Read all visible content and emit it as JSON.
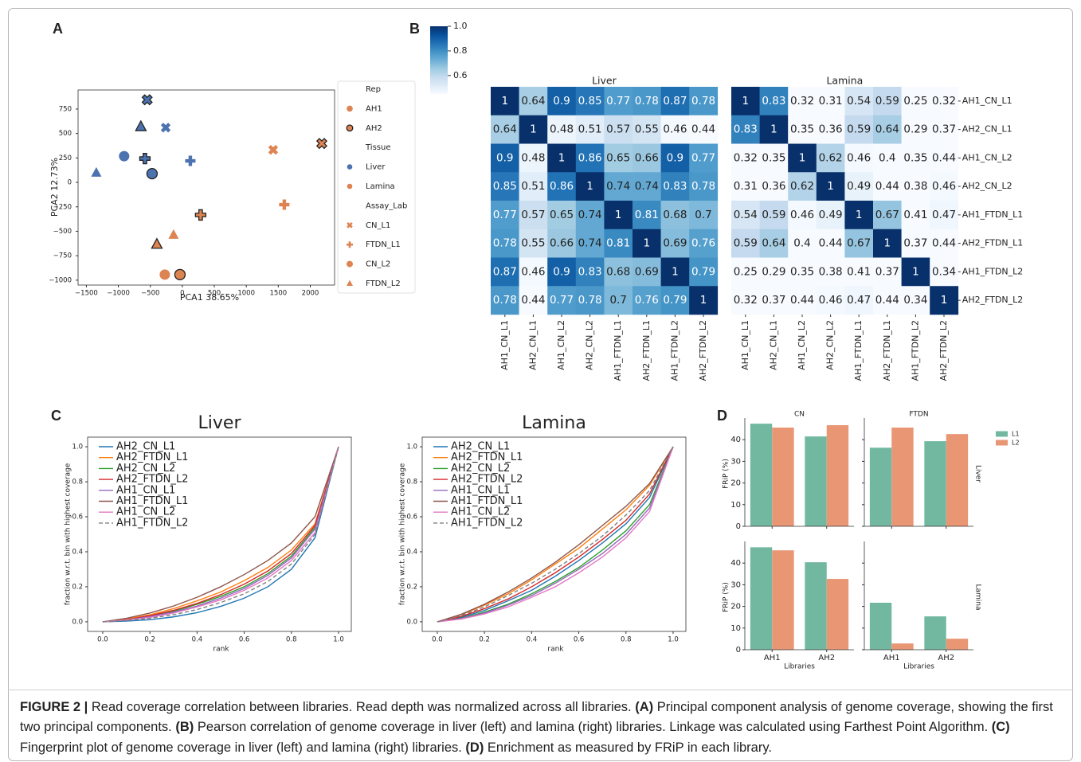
{
  "chart_data": [
    {
      "type": "scatter",
      "panel": "A",
      "xlabel": "PCA1 38.65%",
      "ylabel": "PCA2 12.73%",
      "xlim": [
        -1630,
        2380
      ],
      "ylim": [
        -1050,
        945
      ],
      "xticks": [
        {
          "value": -1500,
          "label": "−1500"
        },
        {
          "value": -1000,
          "label": "−1000"
        },
        {
          "value": -500,
          "label": "−500"
        },
        0,
        500,
        1000,
        1500,
        2000
      ],
      "yticks": [
        {
          "value": -1000,
          "label": "−1000"
        },
        {
          "value": -750,
          "label": "−750"
        },
        {
          "value": -500,
          "label": "−500"
        },
        {
          "value": -250,
          "label": "−250"
        },
        0,
        250,
        500,
        750
      ],
      "legend_groups": [
        {
          "title": "Rep",
          "items": [
            "AH1",
            "AH2"
          ]
        },
        {
          "title": "Tissue",
          "items": [
            "Liver",
            "Lamina"
          ]
        },
        {
          "title": "Assay_Lab",
          "items": [
            "CN_L1",
            "FTDN_L1",
            "CN_L2",
            "FTDN_L2"
          ]
        }
      ],
      "tissue_colors": [
        "#4c72b0",
        "#dd8452"
      ],
      "markers": [
        "x",
        "plus",
        "circle",
        "triangle"
      ],
      "rep_edge": [
        "none",
        "#222222"
      ],
      "x": [
        -260,
        -550,
        125,
        -585,
        -910,
        -473,
        -1345,
        -648,
        1420,
        2180,
        1594,
        286,
        -274,
        -37,
        -137,
        -398
      ],
      "y": [
        560,
        845,
        220,
        244,
        268,
        89,
        98,
        569,
        333,
        398,
        -228,
        -333,
        -943,
        -943,
        -537,
        -634
      ],
      "rep": [
        0,
        1,
        0,
        1,
        0,
        1,
        0,
        1,
        0,
        1,
        0,
        1,
        0,
        1,
        0,
        1
      ],
      "tissue": [
        0,
        0,
        0,
        0,
        0,
        0,
        0,
        0,
        1,
        1,
        1,
        1,
        1,
        1,
        1,
        1
      ],
      "assay": [
        0,
        0,
        1,
        1,
        2,
        2,
        3,
        3,
        0,
        0,
        1,
        1,
        2,
        2,
        3,
        3
      ]
    },
    {
      "type": "heatmap",
      "panel": "B",
      "clim": [
        0.45,
        1
      ],
      "cticks": [
        {
          "value": 1,
          "label": "1.0"
        },
        0.8,
        0.6
      ],
      "cmap": [
        "#f7fbff",
        "#deebf7",
        "#c6dbef",
        "#9ecae1",
        "#6baed6",
        "#4292c6",
        "#2171b5",
        "#08519c",
        "#08306b"
      ],
      "row_labels": [
        "AH1_CN_L1",
        "AH2_CN_L1",
        "AH1_CN_L2",
        "AH2_CN_L2",
        "AH1_FTDN_L1",
        "AH2_FTDN_L1",
        "AH1_FTDN_L2",
        "AH2_FTDN_L2"
      ],
      "panels": [
        {
          "title": "Liver",
          "categories": [
            "AH1_CN_L1",
            "AH2_CN_L1",
            "AH1_CN_L2",
            "AH2_CN_L2",
            "AH1_FTDN_L1",
            "AH2_FTDN_L1",
            "AH1_FTDN_L2",
            "AH2_FTDN_L2"
          ],
          "values": [
            [
              1,
              0.64,
              0.9,
              0.85,
              0.77,
              0.78,
              0.87,
              0.78
            ],
            [
              0.64,
              1,
              0.48,
              0.51,
              0.57,
              0.55,
              0.46,
              0.44
            ],
            [
              0.9,
              0.48,
              1,
              0.86,
              0.65,
              0.66,
              0.9,
              0.77
            ],
            [
              0.85,
              0.51,
              0.86,
              1,
              0.74,
              0.74,
              0.83,
              0.78
            ],
            [
              0.77,
              0.57,
              0.65,
              0.74,
              1,
              0.81,
              0.68,
              0.7
            ],
            [
              0.78,
              0.55,
              0.66,
              0.74,
              0.81,
              1,
              0.69,
              0.76
            ],
            [
              0.87,
              0.46,
              0.9,
              0.83,
              0.68,
              0.69,
              1,
              0.79
            ],
            [
              0.78,
              0.44,
              0.77,
              0.78,
              0.7,
              0.76,
              0.79,
              1
            ]
          ]
        },
        {
          "title": "Lamina",
          "categories": [
            "AH1_CN_L1",
            "AH2_CN_L1",
            "AH1_CN_L2",
            "AH2_CN_L2",
            "AH1_FTDN_L1",
            "AH2_FTDN_L1",
            "AH1_FTDN_L2",
            "AH2_FTDN_L2"
          ],
          "values": [
            [
              1,
              0.83,
              0.32,
              0.31,
              0.54,
              0.59,
              0.25,
              0.32
            ],
            [
              0.83,
              1,
              0.35,
              0.36,
              0.59,
              0.64,
              0.29,
              0.37
            ],
            [
              0.32,
              0.35,
              1,
              0.62,
              0.46,
              0.4,
              0.35,
              0.44
            ],
            [
              0.31,
              0.36,
              0.62,
              1,
              0.49,
              0.44,
              0.38,
              0.46
            ],
            [
              0.54,
              0.59,
              0.46,
              0.49,
              1,
              0.67,
              0.41,
              0.47
            ],
            [
              0.59,
              0.64,
              0.4,
              0.44,
              0.67,
              1,
              0.37,
              0.44
            ],
            [
              0.25,
              0.29,
              0.35,
              0.38,
              0.41,
              0.37,
              1,
              0.34
            ],
            [
              0.32,
              0.37,
              0.44,
              0.46,
              0.47,
              0.44,
              0.34,
              1
            ]
          ]
        }
      ]
    },
    {
      "type": "line",
      "panel": "C",
      "title": "Liver",
      "xlabel": "rank",
      "ylabel": "fraction w.r.t. bin with highest coverage",
      "legend": "upper left",
      "xlim": [
        -0.064,
        1.054
      ],
      "ylim": [
        -0.055,
        1.055
      ],
      "xticks": [
        {
          "value": 0,
          "label": "0.0"
        },
        0.2,
        0.4,
        0.6,
        0.8,
        {
          "value": 1,
          "label": "1.0"
        }
      ],
      "yticks": [
        {
          "value": 0,
          "label": "0.0"
        },
        0.2,
        0.4,
        0.6,
        0.8,
        {
          "value": 1,
          "label": "1.0"
        }
      ],
      "x": [
        0,
        0.1,
        0.2,
        0.3,
        0.4,
        0.5,
        0.6,
        0.7,
        0.8,
        0.9,
        1
      ],
      "series": [
        {
          "name": "AH2_CN_L1",
          "color": "#1f77b4",
          "values": [
            0,
            0.004,
            0.012,
            0.028,
            0.052,
            0.088,
            0.135,
            0.2,
            0.3,
            0.48,
            1
          ]
        },
        {
          "name": "AH2_FTDN_L1",
          "color": "#ff7f0e",
          "values": [
            0,
            0.015,
            0.04,
            0.075,
            0.12,
            0.17,
            0.235,
            0.31,
            0.41,
            0.56,
            1
          ]
        },
        {
          "name": "AH2_CN_L2",
          "color": "#2ca02c",
          "values": [
            0,
            0.01,
            0.03,
            0.06,
            0.1,
            0.145,
            0.2,
            0.275,
            0.375,
            0.54,
            1
          ]
        },
        {
          "name": "AH2_FTDN_L2",
          "color": "#d62728",
          "values": [
            0,
            0.012,
            0.035,
            0.065,
            0.105,
            0.155,
            0.215,
            0.29,
            0.39,
            0.55,
            1
          ]
        },
        {
          "name": "AH1_CN_L1",
          "color": "#9467bd",
          "values": [
            0,
            0.01,
            0.03,
            0.055,
            0.09,
            0.135,
            0.19,
            0.265,
            0.365,
            0.53,
            1
          ]
        },
        {
          "name": "AH1_FTDN_L1",
          "color": "#8c564b",
          "values": [
            0,
            0.02,
            0.05,
            0.09,
            0.14,
            0.2,
            0.27,
            0.35,
            0.45,
            0.6,
            1
          ]
        },
        {
          "name": "AH1_CN_L2",
          "color": "#e377c2",
          "values": [
            0,
            0.01,
            0.025,
            0.05,
            0.085,
            0.125,
            0.18,
            0.25,
            0.35,
            0.51,
            1
          ]
        },
        {
          "name": "AH1_FTDN_L2",
          "color": "#7f7f7f",
          "linestyle": "dashed",
          "values": [
            0,
            0.007,
            0.02,
            0.04,
            0.07,
            0.11,
            0.16,
            0.23,
            0.33,
            0.5,
            1
          ]
        }
      ]
    },
    {
      "type": "line",
      "title": "Lamina",
      "xlabel": "rank",
      "ylabel": "fraction w.r.t. bin with highest coverage",
      "legend": "upper left",
      "xlim": [
        -0.064,
        1.054
      ],
      "ylim": [
        -0.055,
        1.055
      ],
      "xticks": [
        {
          "value": 0,
          "label": "0.0"
        },
        0.2,
        0.4,
        0.6,
        0.8,
        {
          "value": 1,
          "label": "1.0"
        }
      ],
      "yticks": [
        {
          "value": 0,
          "label": "0.0"
        },
        0.2,
        0.4,
        0.6,
        0.8,
        {
          "value": 1,
          "label": "1.0"
        }
      ],
      "x": [
        0,
        0.1,
        0.2,
        0.3,
        0.4,
        0.5,
        0.6,
        0.7,
        0.8,
        0.9,
        1
      ],
      "series": [
        {
          "name": "AH2_CN_L1",
          "color": "#1f77b4",
          "values": [
            0,
            0.025,
            0.065,
            0.12,
            0.18,
            0.26,
            0.35,
            0.45,
            0.56,
            0.71,
            1
          ]
        },
        {
          "name": "AH2_FTDN_L1",
          "color": "#ff7f0e",
          "values": [
            0,
            0.04,
            0.095,
            0.16,
            0.24,
            0.33,
            0.42,
            0.53,
            0.64,
            0.78,
            1
          ]
        },
        {
          "name": "AH2_CN_L2",
          "color": "#2ca02c",
          "values": [
            0,
            0.02,
            0.055,
            0.1,
            0.16,
            0.23,
            0.31,
            0.41,
            0.52,
            0.67,
            1
          ]
        },
        {
          "name": "AH2_FTDN_L2",
          "color": "#d62728",
          "values": [
            0,
            0.03,
            0.075,
            0.13,
            0.2,
            0.28,
            0.37,
            0.47,
            0.58,
            0.73,
            1
          ]
        },
        {
          "name": "AH1_CN_L1",
          "color": "#9467bd",
          "values": [
            0,
            0.018,
            0.05,
            0.095,
            0.15,
            0.22,
            0.3,
            0.39,
            0.5,
            0.65,
            1
          ]
        },
        {
          "name": "AH1_FTDN_L1",
          "color": "#8c564b",
          "values": [
            0,
            0.042,
            0.1,
            0.17,
            0.25,
            0.34,
            0.44,
            0.55,
            0.66,
            0.79,
            1
          ]
        },
        {
          "name": "AH1_CN_L2",
          "color": "#e377c2",
          "values": [
            0,
            0.015,
            0.045,
            0.085,
            0.14,
            0.2,
            0.28,
            0.37,
            0.48,
            0.63,
            1
          ]
        },
        {
          "name": "AH1_FTDN_L2",
          "color": "#7f7f7f",
          "linestyle": "dashed",
          "values": [
            0,
            0.035,
            0.085,
            0.15,
            0.22,
            0.3,
            0.39,
            0.49,
            0.61,
            0.75,
            1
          ]
        }
      ]
    },
    {
      "type": "bar",
      "panel": "D",
      "ylabel": "FRiP (%)",
      "xlabel": "Libraries",
      "col_titles": [
        "CN",
        "FTDN"
      ],
      "row_titles": [
        "Liver",
        "Lamina"
      ],
      "categories": [
        "AH1",
        "AH2"
      ],
      "series": [
        {
          "name": "L1",
          "color": "#72b8a0"
        },
        {
          "name": "L2",
          "color": "#e99675"
        }
      ],
      "ylim": [
        0,
        50
      ],
      "yticks": [
        0,
        10,
        20,
        30,
        40
      ],
      "facets": [
        [
          [
            [
              47.4,
              41.5
            ],
            [
              45.6,
              46.7
            ]
          ],
          [
            [
              36.3,
              39.3
            ],
            [
              45.6,
              42.6
            ]
          ]
        ],
        [
          [
            [
              47.3,
              40.4
            ],
            [
              45.9,
              32.7
            ]
          ],
          [
            [
              21.7,
              15.4
            ],
            [
              2.9,
              5.1
            ]
          ]
        ]
      ]
    }
  ],
  "caption": [
    {
      "text": "FIGURE 2 |",
      "bold": true
    },
    {
      "text": " Read coverage correlation between libraries. Read depth was normalized across all libraries. "
    },
    {
      "text": "(A)",
      "bold": true
    },
    {
      "text": " Principal component analysis of genome coverage, showing the first two principal components. "
    },
    {
      "text": "(B)",
      "bold": true
    },
    {
      "text": " Pearson correlation of genome coverage in liver (left) and lamina (right) libraries. Linkage was calculated using Farthest Point Algorithm. "
    },
    {
      "text": "(C)",
      "bold": true
    },
    {
      "text": " Fingerprint plot of genome coverage in liver (left) and lamina (right) libraries. "
    },
    {
      "text": "(D)",
      "bold": true
    },
    {
      "text": " Enrichment as measured by FRiP in each library."
    }
  ]
}
